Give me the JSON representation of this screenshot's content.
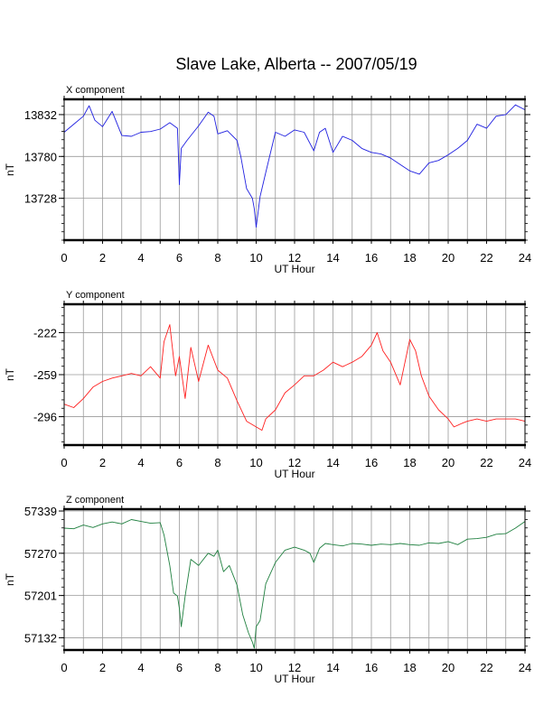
{
  "title": "Slave Lake, Alberta -- 2007/05/19",
  "chart_data": {
    "type": "line",
    "title": "Slave Lake, Alberta -- 2007/05/19",
    "xlabel": "UT Hour",
    "xlim": [
      0,
      24
    ],
    "xticks": [
      "0",
      "2",
      "4",
      "6",
      "8",
      "10",
      "12",
      "14",
      "16",
      "18",
      "20",
      "22",
      "24"
    ],
    "grid": true,
    "panels": [
      {
        "name": "X component",
        "ylabel": "nT",
        "ylim": [
          13676,
          13851
        ],
        "yticks": [
          13728,
          13780,
          13832
        ],
        "ytick_labels": [
          "13728",
          "13780",
          "13832"
        ],
        "color": "#2020e0",
        "series": {
          "x": [
            0,
            0.5,
            1,
            1.3,
            1.6,
            2,
            2.5,
            3,
            3.5,
            4,
            4.5,
            5,
            5.5,
            5.9,
            6,
            6.1,
            6.4,
            7,
            7.5,
            7.8,
            8,
            8.5,
            9,
            9.2,
            9.5,
            9.8,
            9.9,
            10,
            10.2,
            10.5,
            11,
            11.5,
            12,
            12.5,
            13,
            13.3,
            13.6,
            14,
            14.5,
            15,
            15.5,
            16,
            16.5,
            17,
            17.5,
            18,
            18.5,
            19,
            19.5,
            20,
            20.5,
            21,
            21.5,
            22,
            22.5,
            23,
            23.5,
            24
          ],
          "y": [
            13810,
            13820,
            13830,
            13843,
            13825,
            13817,
            13836,
            13806,
            13805,
            13810,
            13811,
            13814,
            13822,
            13815,
            13745,
            13790,
            13800,
            13818,
            13835,
            13830,
            13808,
            13812,
            13800,
            13780,
            13740,
            13728,
            13715,
            13692,
            13730,
            13760,
            13810,
            13805,
            13813,
            13810,
            13787,
            13810,
            13815,
            13785,
            13805,
            13800,
            13790,
            13785,
            13783,
            13778,
            13770,
            13762,
            13758,
            13772,
            13775,
            13782,
            13790,
            13800,
            13820,
            13815,
            13830,
            13832,
            13844,
            13838
          ]
        }
      },
      {
        "name": "Y component",
        "ylabel": "nT",
        "ylim": [
          -321,
          -197
        ],
        "yticks": [
          -222,
          -259,
          -296
        ],
        "ytick_labels": [
          "-222",
          "-259",
          "-296"
        ],
        "color": "#ff2020",
        "series": {
          "x": [
            0,
            0.5,
            1,
            1.5,
            2,
            2.5,
            3,
            3.5,
            4,
            4.5,
            5,
            5.2,
            5.5,
            5.8,
            6,
            6.3,
            6.6,
            7,
            7.5,
            8,
            8.5,
            9,
            9.5,
            10,
            10.3,
            10.5,
            11,
            11.5,
            12,
            12.5,
            13,
            13.5,
            14,
            14.5,
            15,
            15.5,
            16,
            16.3,
            16.6,
            17,
            17.5,
            18,
            18.3,
            18.6,
            19,
            19.5,
            20,
            20.3,
            20.7,
            21,
            21.5,
            22,
            22.5,
            23,
            23.5,
            24
          ],
          "y": [
            -285,
            -288,
            -280,
            -270,
            -265,
            -262,
            -260,
            -258,
            -260,
            -252,
            -262,
            -230,
            -215,
            -260,
            -243,
            -280,
            -235,
            -265,
            -233,
            -255,
            -262,
            -282,
            -300,
            -305,
            -308,
            -298,
            -290,
            -275,
            -268,
            -260,
            -260,
            -255,
            -248,
            -252,
            -248,
            -243,
            -233,
            -222,
            -238,
            -248,
            -268,
            -228,
            -238,
            -260,
            -278,
            -290,
            -298,
            -305,
            -302,
            -300,
            -298,
            -300,
            -298,
            -298,
            -298,
            -300
          ]
        }
      },
      {
        "name": "Z component",
        "ylabel": "nT",
        "ylim": [
          57112,
          57342
        ],
        "yticks": [
          57132,
          57201,
          57270,
          57339
        ],
        "ytick_labels": [
          "57132",
          "57201",
          "57270",
          "57339"
        ],
        "color": "#208040",
        "series": {
          "x": [
            0,
            0.5,
            1,
            1.5,
            2,
            2.5,
            3,
            3.5,
            4,
            4.5,
            5,
            5.2,
            5.5,
            5.7,
            5.9,
            6,
            6.1,
            6.3,
            6.6,
            7,
            7.5,
            7.8,
            8,
            8.3,
            8.6,
            9,
            9.3,
            9.6,
            9.8,
            9.9,
            10,
            10.2,
            10.5,
            11,
            11.5,
            12,
            12.5,
            12.8,
            13,
            13.3,
            13.6,
            14,
            14.5,
            15,
            15.5,
            16,
            16.5,
            17,
            17.5,
            18,
            18.5,
            19,
            19.5,
            20,
            20.5,
            21,
            21.5,
            22,
            22.5,
            23,
            23.5,
            24
          ],
          "y": [
            57311,
            57310,
            57316,
            57312,
            57318,
            57321,
            57318,
            57325,
            57322,
            57319,
            57320,
            57300,
            57250,
            57205,
            57200,
            57180,
            57150,
            57200,
            57260,
            57250,
            57270,
            57265,
            57275,
            57240,
            57250,
            57218,
            57170,
            57140,
            57125,
            57115,
            57150,
            57160,
            57220,
            57255,
            57275,
            57280,
            57275,
            57270,
            57255,
            57278,
            57286,
            57284,
            57282,
            57286,
            57285,
            57283,
            57285,
            57284,
            57286,
            57284,
            57283,
            57287,
            57286,
            57289,
            57284,
            57293,
            57294,
            57296,
            57301,
            57302,
            57311,
            57322
          ]
        }
      }
    ]
  }
}
